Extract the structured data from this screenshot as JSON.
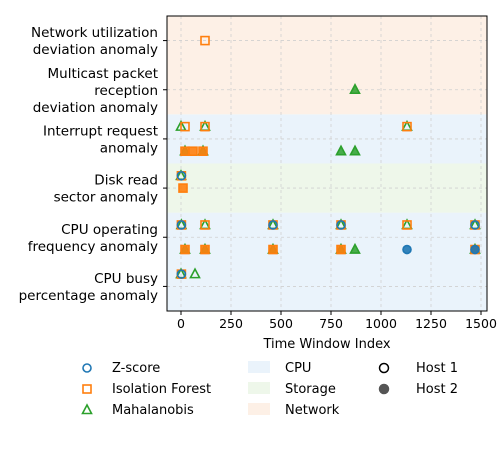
{
  "chart_data": {
    "type": "scatter",
    "xlabel": "Time Window Index",
    "xlim": [
      -70,
      1530
    ],
    "xticks": [
      0,
      250,
      500,
      750,
      1000,
      1250,
      1500
    ],
    "y_categories": [
      "CPU busy\npercentage anomaly",
      "CPU operating\nfrequency anomaly",
      "Disk read\nsector anomaly",
      "Interrupt request\nanomaly",
      "Multicast packet\nreception\ndeviation anomaly",
      "Network utilization\ndeviation anomaly"
    ],
    "grid": true,
    "bands": [
      {
        "name": "CPU",
        "from": -0.5,
        "to": 1.5,
        "color": "#eaf3fb"
      },
      {
        "name": "Storage",
        "from": 1.5,
        "to": 2.5,
        "color": "#eef7ea"
      },
      {
        "name": "CPU",
        "from": 2.5,
        "to": 3.5,
        "color": "#eaf3fb"
      },
      {
        "name": "Network",
        "from": 3.5,
        "to": 5.5,
        "color": "#fdf0e6"
      }
    ],
    "colors": {
      "zscore": "#1f77b4",
      "iforest": "#ff7f0e",
      "mahalanobis": "#2ca02c"
    },
    "series": [
      {
        "method": "Mahalanobis",
        "host": "Host 1",
        "points": [
          [
            0,
            0.25
          ],
          [
            70,
            0.25
          ],
          [
            2,
            1.25
          ],
          [
            120,
            1.25
          ],
          [
            460,
            1.25
          ],
          [
            800,
            1.25
          ],
          [
            1130,
            1.25
          ],
          [
            1470,
            1.25
          ],
          [
            0,
            2.25
          ],
          [
            0,
            3.25
          ],
          [
            120,
            3.25
          ],
          [
            1130,
            3.25
          ]
        ]
      },
      {
        "method": "Mahalanobis",
        "host": "Host 2",
        "points": [
          [
            20,
            0.75
          ],
          [
            120,
            0.75
          ],
          [
            460,
            0.75
          ],
          [
            800,
            0.75
          ],
          [
            870,
            0.75
          ],
          [
            1470,
            0.75
          ],
          [
            20,
            2.75
          ],
          [
            110,
            2.75
          ],
          [
            800,
            2.75
          ],
          [
            870,
            2.75
          ],
          [
            870,
            4.0
          ]
        ]
      },
      {
        "method": "Isolation Forest",
        "host": "Host 1",
        "points": [
          [
            2,
            0.25
          ],
          [
            2,
            1.25
          ],
          [
            120,
            1.25
          ],
          [
            460,
            1.25
          ],
          [
            800,
            1.25
          ],
          [
            1130,
            1.25
          ],
          [
            1470,
            1.25
          ],
          [
            2,
            2.25
          ],
          [
            20,
            3.25
          ],
          [
            120,
            3.25
          ],
          [
            1130,
            3.25
          ],
          [
            120,
            5.0
          ]
        ]
      },
      {
        "method": "Isolation Forest",
        "host": "Host 2",
        "points": [
          [
            20,
            0.75
          ],
          [
            120,
            0.75
          ],
          [
            460,
            0.75
          ],
          [
            800,
            0.75
          ],
          [
            1470,
            0.75
          ],
          [
            10,
            2.0
          ],
          [
            20,
            2.75
          ],
          [
            60,
            2.75
          ],
          [
            110,
            2.75
          ]
        ]
      },
      {
        "method": "Z-score",
        "host": "Host 1",
        "points": [
          [
            2,
            0.25
          ],
          [
            2,
            1.25
          ],
          [
            460,
            1.25
          ],
          [
            800,
            1.25
          ],
          [
            1470,
            1.25
          ],
          [
            2,
            2.25
          ]
        ]
      },
      {
        "method": "Z-score",
        "host": "Host 2",
        "points": [
          [
            1130,
            0.75
          ],
          [
            1470,
            0.75
          ]
        ]
      }
    ],
    "legend": {
      "position": "below",
      "methods": [
        {
          "label": "Z-score",
          "marker": "circle",
          "color": "#1f77b4"
        },
        {
          "label": "Isolation Forest",
          "marker": "square",
          "color": "#ff7f0e"
        },
        {
          "label": "Mahalanobis",
          "marker": "triangle",
          "color": "#2ca02c"
        }
      ],
      "categories": [
        {
          "label": "CPU",
          "color": "#eaf3fb"
        },
        {
          "label": "Storage",
          "color": "#eef7ea"
        },
        {
          "label": "Network",
          "color": "#fdf0e6"
        }
      ],
      "hosts": [
        {
          "label": "Host 1",
          "style": "hollow"
        },
        {
          "label": "Host 2",
          "style": "filled"
        }
      ]
    }
  }
}
